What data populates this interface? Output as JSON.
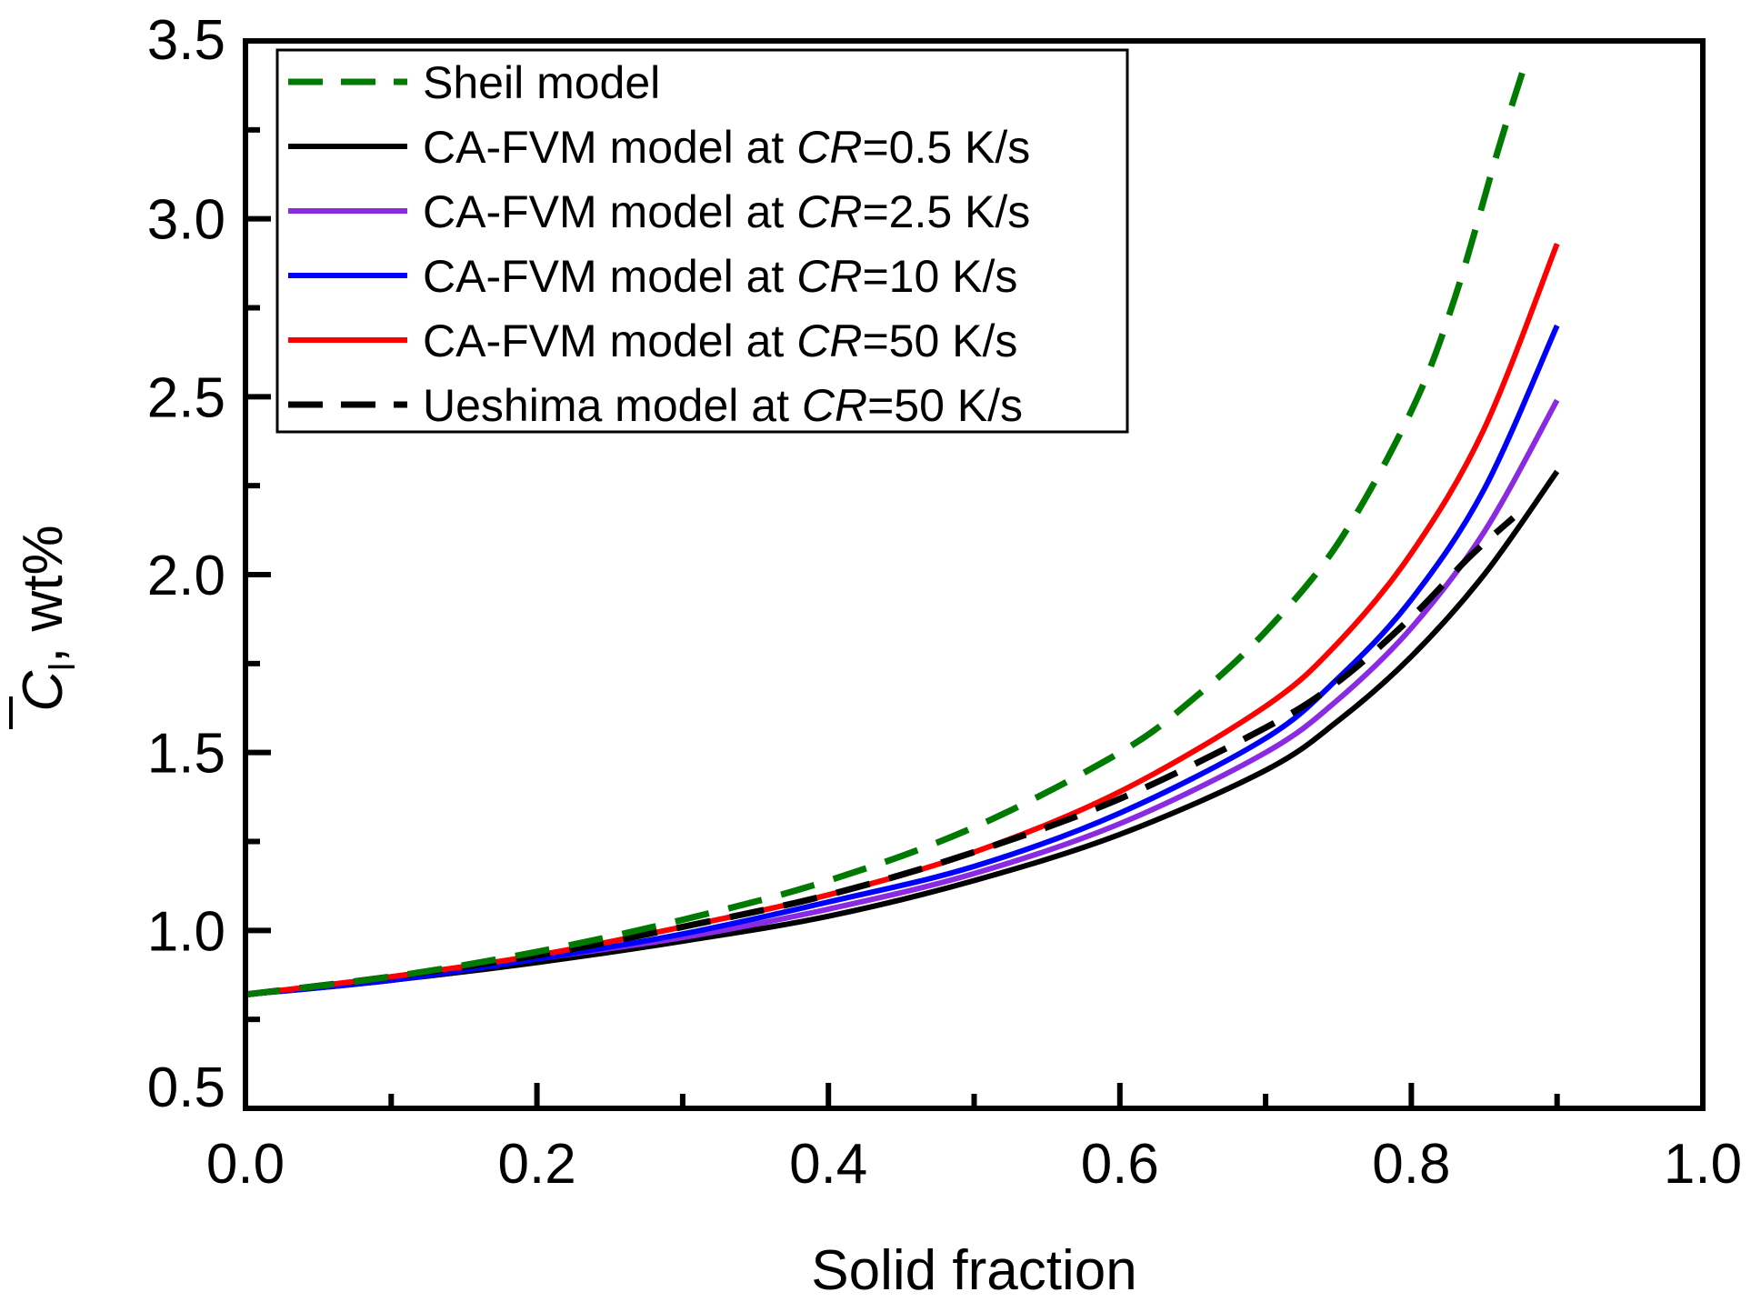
{
  "chart_data": {
    "type": "line",
    "xlabel": "Solid fraction",
    "ylabel": {
      "symbol": "C",
      "subscript": "l",
      "unit": ", wt%"
    },
    "xlim": [
      0.0,
      1.0
    ],
    "ylim": [
      0.5,
      3.5
    ],
    "xticks": [
      "0.0",
      "0.2",
      "0.4",
      "0.6",
      "0.8",
      "1.0"
    ],
    "yticks": [
      "0.5",
      "1.0",
      "1.5",
      "2.0",
      "2.5",
      "3.0",
      "3.5"
    ],
    "x_tick_values": [
      0.0,
      0.2,
      0.4,
      0.6,
      0.8,
      1.0
    ],
    "y_tick_values": [
      0.5,
      1.0,
      1.5,
      2.0,
      2.5,
      3.0,
      3.5
    ],
    "x_minor_tick_values": [
      0.1,
      0.3,
      0.5,
      0.7,
      0.9
    ],
    "y_minor_tick_values": [
      0.75,
      1.25,
      1.75,
      2.25,
      2.75,
      3.25
    ],
    "legend_position": "top-left",
    "series": [
      {
        "name": "Sheil model",
        "label_plain": "Sheil model",
        "color": "#007a00",
        "dash": "dashed",
        "x": [
          0.0,
          0.1,
          0.2,
          0.3,
          0.4,
          0.5,
          0.6,
          0.65,
          0.7,
          0.75,
          0.8,
          0.83,
          0.86,
          0.88
        ],
        "y": [
          0.82,
          0.87,
          0.94,
          1.03,
          1.14,
          1.29,
          1.5,
          1.65,
          1.84,
          2.09,
          2.46,
          2.78,
          3.2,
          3.46
        ]
      },
      {
        "name": "CA-FVM model at CR=0.5 K/s",
        "label_prefix": "CA-FVM model at ",
        "label_italic": "CR",
        "label_suffix": "=0.5 K/s",
        "color": "#000000",
        "dash": "solid",
        "x": [
          0.0,
          0.1,
          0.2,
          0.3,
          0.4,
          0.5,
          0.6,
          0.7,
          0.75,
          0.8,
          0.85,
          0.9
        ],
        "y": [
          0.82,
          0.86,
          0.91,
          0.97,
          1.04,
          1.14,
          1.27,
          1.45,
          1.59,
          1.77,
          2.0,
          2.29
        ]
      },
      {
        "name": "CA-FVM model at CR=2.5 K/s",
        "label_prefix": "CA-FVM model at ",
        "label_italic": "CR",
        "label_suffix": "=2.5 K/s",
        "color": "#8a2be2",
        "dash": "solid",
        "x": [
          0.0,
          0.1,
          0.2,
          0.3,
          0.4,
          0.5,
          0.6,
          0.7,
          0.75,
          0.8,
          0.85,
          0.9
        ],
        "y": [
          0.82,
          0.86,
          0.92,
          0.98,
          1.06,
          1.16,
          1.3,
          1.5,
          1.65,
          1.85,
          2.12,
          2.49
        ]
      },
      {
        "name": "CA-FVM model at CR=10 K/s",
        "label_prefix": "CA-FVM model at ",
        "label_italic": "CR",
        "label_suffix": "=10 K/s",
        "color": "#0000ff",
        "dash": "solid",
        "x": [
          0.0,
          0.1,
          0.2,
          0.3,
          0.4,
          0.5,
          0.6,
          0.7,
          0.75,
          0.8,
          0.85,
          0.9
        ],
        "y": [
          0.82,
          0.86,
          0.92,
          0.99,
          1.08,
          1.18,
          1.33,
          1.54,
          1.71,
          1.93,
          2.24,
          2.7
        ]
      },
      {
        "name": "CA-FVM model at CR=50 K/s",
        "label_prefix": "CA-FVM model at ",
        "label_italic": "CR",
        "label_suffix": "=50 K/s",
        "color": "#ff0000",
        "dash": "solid",
        "x": [
          0.0,
          0.1,
          0.2,
          0.3,
          0.4,
          0.5,
          0.6,
          0.7,
          0.75,
          0.8,
          0.85,
          0.9
        ],
        "y": [
          0.82,
          0.87,
          0.93,
          1.01,
          1.1,
          1.22,
          1.39,
          1.63,
          1.81,
          2.06,
          2.41,
          2.93
        ]
      },
      {
        "name": "Ueshima model at CR=50 K/s",
        "label_prefix": "Ueshima model at ",
        "label_italic": "CR",
        "label_suffix": "=50 K/s",
        "color": "#000000",
        "dash": "dashed",
        "x": [
          0.0,
          0.1,
          0.2,
          0.3,
          0.4,
          0.5,
          0.6,
          0.7,
          0.75,
          0.8,
          0.84,
          0.87
        ],
        "y": [
          0.82,
          0.87,
          0.93,
          1.01,
          1.1,
          1.22,
          1.37,
          1.57,
          1.7,
          1.88,
          2.05,
          2.16
        ]
      }
    ]
  }
}
